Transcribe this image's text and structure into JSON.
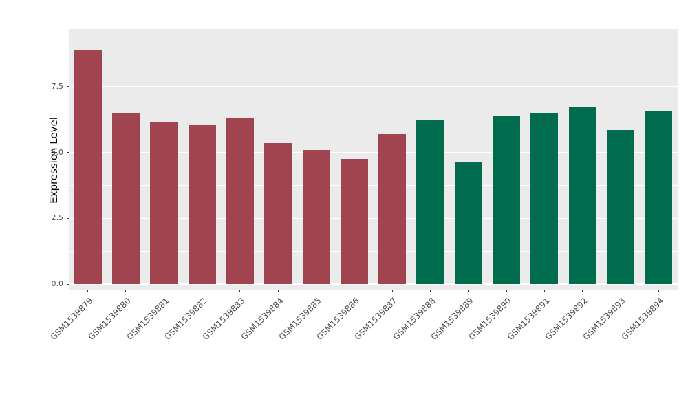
{
  "chart_data": {
    "type": "bar",
    "title": "",
    "xlabel": "",
    "ylabel": "Expression Level",
    "ylim": [
      0,
      9.3
    ],
    "grid": true,
    "legend": "none",
    "panel_background": "#ebebeb",
    "gridline_color": "#ffffff",
    "ytick_labels": [
      "0.0",
      "2.5",
      "5.0",
      "7.5"
    ],
    "ytick_values": [
      0,
      2.5,
      5,
      7.5
    ],
    "minor_tick_values": [
      1.25,
      3.75,
      6.25,
      8.75
    ],
    "group_colors": {
      "group1": "#A04550",
      "group2": "#016B4D"
    },
    "categories": [
      "GSM1539879",
      "GSM1539880",
      "GSM1539881",
      "GSM1539882",
      "GSM1539883",
      "GSM1539884",
      "GSM1539885",
      "GSM1539886",
      "GSM1539887",
      "GSM1539888",
      "GSM1539889",
      "GSM1539890",
      "GSM1539891",
      "GSM1539892",
      "GSM1539893",
      "GSM1539894"
    ],
    "values": [
      8.9,
      6.5,
      6.15,
      6.05,
      6.3,
      5.35,
      5.1,
      4.75,
      5.7,
      6.25,
      4.65,
      6.4,
      6.5,
      6.75,
      5.85,
      6.55
    ],
    "colors": [
      "#A04550",
      "#A04550",
      "#A04550",
      "#A04550",
      "#A04550",
      "#A04550",
      "#A04550",
      "#A04550",
      "#A04550",
      "#016B4D",
      "#016B4D",
      "#016B4D",
      "#016B4D",
      "#016B4D",
      "#016B4D",
      "#016B4D"
    ]
  }
}
